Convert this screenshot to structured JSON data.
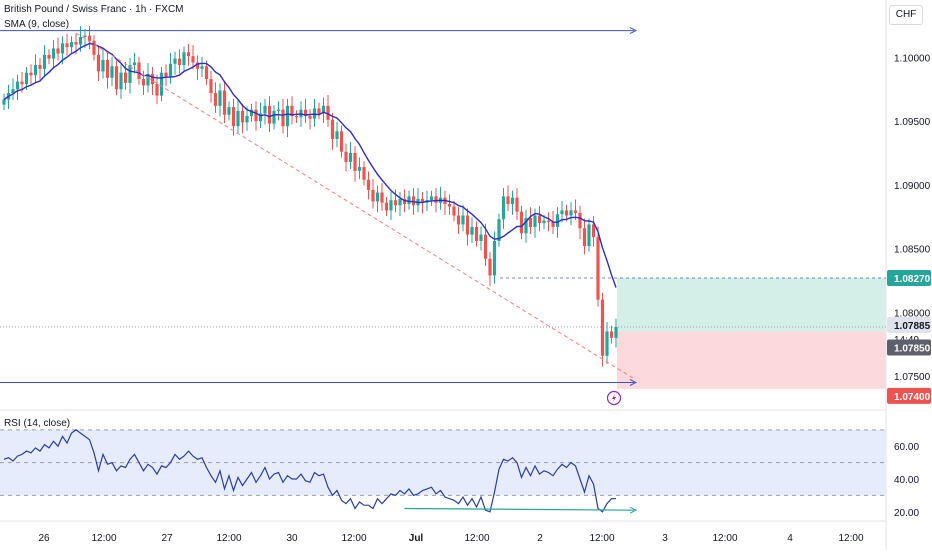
{
  "header": {
    "symbol_title": "British Pound / Swiss Franc · 1h · FXCM",
    "sma_label": "SMA (9, close)",
    "rsi_label": "RSI (14, close)",
    "currency_button": "CHF",
    "alert_icon": "lightning-bolt-icon"
  },
  "colors": {
    "up": "#26a69a",
    "down": "#ef5350",
    "sma": "#2a2ec7",
    "rsi": "#2a3f9f",
    "trendline": "#f77c80",
    "horizontal_lines": "#3f51b5",
    "profit_zone": "#d4eee8",
    "loss_zone": "#fbd9dc",
    "rsi_band": "#e7ecfc",
    "label_dark": "#5d606b",
    "label_gray": "#e0e3eb"
  },
  "chart_data": [
    {
      "type": "candlestick",
      "title": "British Pound / Swiss Franc · 1h · FXCM",
      "ylim": [
        1.0725,
        1.1045
      ],
      "y_ticks": [
        "1.10000",
        "1.09500",
        "1.09000",
        "1.08500",
        "1.08000",
        "1.07500"
      ],
      "x_ticks": [
        "26",
        "12:00",
        "27",
        "12:00",
        "30",
        "12:00",
        "Jul",
        "12:00",
        "2",
        "12:00",
        "3",
        "12:00",
        "4",
        "12:00"
      ],
      "close_series": [
        1.0967,
        1.0972,
        1.0975,
        1.0981,
        1.0979,
        1.0988,
        1.0986,
        1.0994,
        1.0991,
        1.1002,
        1.0999,
        1.1007,
        1.1003,
        1.1011,
        1.1008,
        1.1012,
        1.101,
        1.1016,
        1.1017,
        1.1013,
        1.1002,
        1.0989,
        1.0998,
        1.0984,
        1.0993,
        1.0975,
        1.0988,
        1.098,
        1.0994,
        1.0996,
        1.0983,
        1.0978,
        1.0987,
        1.0979,
        1.097,
        1.0988,
        1.0985,
        1.0995,
        1.0999,
        1.0994,
        1.1004,
        1.1001,
        1.0996,
        1.0991,
        1.0993,
        1.0983,
        1.0972,
        1.0962,
        1.0974,
        1.0955,
        1.0961,
        1.0946,
        1.0958,
        1.0949,
        1.0954,
        1.0959,
        1.095,
        1.0956,
        1.0962,
        1.0948,
        1.0958,
        1.0959,
        1.0946,
        1.0962,
        1.0954,
        1.0953,
        1.0959,
        1.0954,
        1.0952,
        1.096,
        1.0956,
        1.0962,
        1.0951,
        1.0936,
        1.0942,
        1.0926,
        1.0918,
        1.0925,
        1.0911,
        1.0914,
        1.0904,
        1.0896,
        1.0887,
        1.0894,
        1.0886,
        1.088,
        1.0888,
        1.0884,
        1.0889,
        1.0885,
        1.0891,
        1.0884,
        1.0889,
        1.0886,
        1.0888,
        1.0891,
        1.0886,
        1.089,
        1.0885,
        1.0883,
        1.0876,
        1.0869,
        1.0876,
        1.0861,
        1.0867,
        1.0856,
        1.0861,
        1.0842,
        1.0829,
        1.0856,
        1.0873,
        1.0891,
        1.0885,
        1.089,
        1.0879,
        1.0862,
        1.0874,
        1.0867,
        1.0876,
        1.087,
        1.0872,
        1.0871,
        1.0867,
        1.0877,
        1.088,
        1.0876,
        1.088,
        1.0878,
        1.0866,
        1.0852,
        1.0869,
        1.0859,
        1.081,
        1.0766,
        1.0785,
        1.078,
        1.07885
      ],
      "sma_period": 9,
      "series": [
        {
          "name": "SMA (9, close)",
          "type": "line"
        }
      ],
      "annotations": {
        "horizontal_line_high": 1.1021,
        "horizontal_line_low": 1.0745,
        "trendline_from": {
          "index": 16,
          "price": 1.1019
        },
        "trendline_to": {
          "index": 140,
          "price": 1.0748
        },
        "long_position": {
          "entry": 1.0785,
          "target": 1.0827,
          "stop": 1.074
        },
        "price_labels": [
          "1.08270",
          "1.07885",
          "14:49",
          "1.07850",
          "1.07400"
        ]
      }
    },
    {
      "type": "line",
      "title": "RSI (14, close)",
      "ylim": [
        15,
        76
      ],
      "y_ticks": [
        "60.00",
        "40.00",
        "20.00"
      ],
      "levels": {
        "upper": 70,
        "middle": 50,
        "lower": 30
      },
      "divergence_line": {
        "from_index": 89,
        "from_value": 22,
        "to_index": 140,
        "to_value": 21
      },
      "values": [
        52,
        53,
        51,
        54,
        55,
        57,
        56,
        59,
        57,
        61,
        59,
        63,
        60,
        66,
        62,
        68,
        70,
        68,
        66,
        64,
        56,
        45,
        55,
        49,
        50,
        45,
        48,
        47,
        52,
        55,
        50,
        45,
        49,
        47,
        43,
        48,
        47,
        50,
        55,
        52,
        54,
        57,
        54,
        52,
        53,
        47,
        42,
        38,
        45,
        34,
        42,
        33,
        41,
        36,
        40,
        44,
        38,
        42,
        47,
        40,
        43,
        44,
        38,
        42,
        40,
        40,
        43,
        39,
        38,
        44,
        42,
        43,
        35,
        30,
        33,
        27,
        25,
        28,
        22,
        26,
        24,
        24,
        22,
        28,
        25,
        28,
        31,
        30,
        33,
        31,
        34,
        30,
        31,
        33,
        34,
        35,
        31,
        33,
        29,
        28,
        27,
        25,
        29,
        24,
        28,
        23,
        29,
        21,
        20,
        32,
        46,
        52,
        51,
        53,
        50,
        41,
        47,
        42,
        48,
        43,
        45,
        44,
        42,
        46,
        49,
        47,
        50,
        48,
        40,
        32,
        42,
        37,
        22,
        20,
        25,
        28,
        28
      ]
    }
  ]
}
